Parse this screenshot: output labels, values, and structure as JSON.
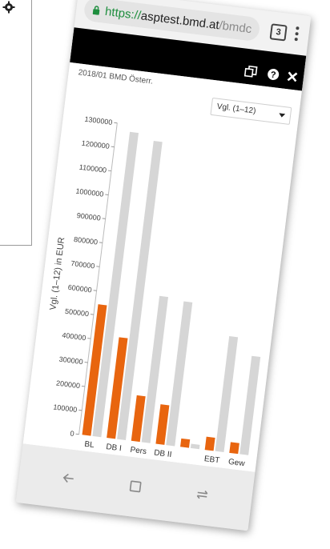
{
  "browser": {
    "url_scheme": "https://",
    "url_host": "asptest.bmd.at",
    "url_path": "/bmdc",
    "tab_count": "3"
  },
  "app": {
    "report_title": "2018/01 BMD Österr.",
    "selector": {
      "selected": "Vgl. (1–12)"
    }
  },
  "icons": [
    "lock-icon",
    "menu-dots-icon",
    "restore-icon",
    "help-icon",
    "close-icon",
    "gear-icon",
    "back-icon",
    "home-icon",
    "recents-icon"
  ],
  "colors": {
    "orange": "#e8650f",
    "gray": "#d6d6d6",
    "appbar": "#000000",
    "url_green": "#1e8e3e"
  },
  "chart_data": {
    "type": "bar",
    "ylabel": "Vgl. (1–12) in EUR",
    "ylim": [
      0,
      1300000
    ],
    "yticks": [
      0,
      100000,
      200000,
      300000,
      400000,
      500000,
      600000,
      700000,
      800000,
      900000,
      1000000,
      1100000,
      1200000,
      1300000
    ],
    "categories": [
      "BL",
      "DB I",
      "Pers",
      "DB II",
      "",
      "EBT",
      "Gew"
    ],
    "series": [
      {
        "color": "#e8650f",
        "values": [
          545000,
          420000,
          190000,
          165000,
          35000,
          55000,
          45000
        ]
      },
      {
        "color": "#d6d6d6",
        "values": [
          1270000,
          1245000,
          610000,
          600000,
          18000,
          480000,
          410000
        ]
      }
    ]
  }
}
